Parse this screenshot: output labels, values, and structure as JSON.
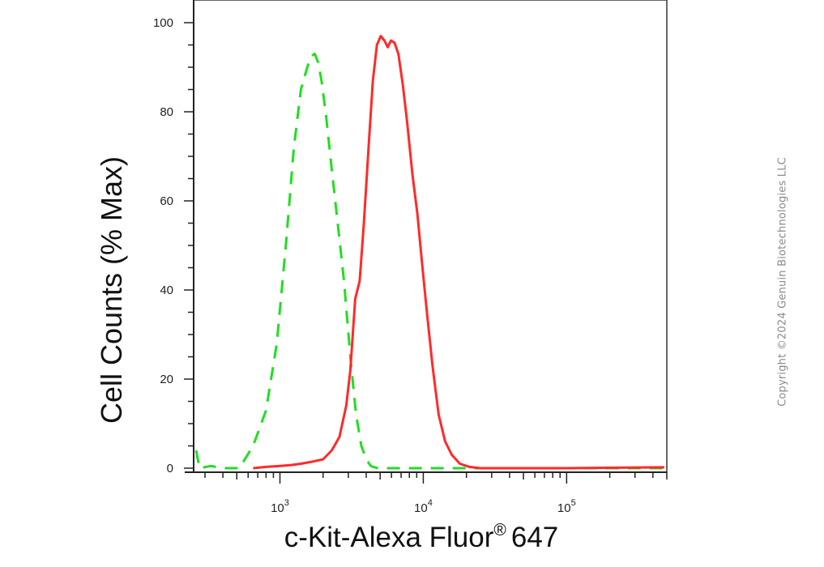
{
  "chart_data": {
    "type": "line",
    "xlabel": "c-Kit-Alexa Fluor",
    "xlabel_superscript": "®",
    "xlabel_suffix": "647",
    "ylabel": "Cell Counts (% Max)",
    "x_scale": "log",
    "xlim": [
      250,
      500000
    ],
    "ylim": [
      0,
      100
    ],
    "y_ticks": [
      0,
      20,
      40,
      60,
      80,
      100
    ],
    "x_ticks": [
      {
        "value": 1000,
        "base": "10",
        "exp": "3"
      },
      {
        "value": 10000,
        "base": "10",
        "exp": "4"
      },
      {
        "value": 100000,
        "base": "10",
        "exp": "5"
      }
    ],
    "series": [
      {
        "color": "#22dd22",
        "style": "dashed",
        "points": [
          [
            260,
            4
          ],
          [
            275,
            0
          ],
          [
            330,
            0.5
          ],
          [
            400,
            0
          ],
          [
            520,
            0
          ],
          [
            650,
            5
          ],
          [
            800,
            13
          ],
          [
            950,
            28
          ],
          [
            1100,
            50
          ],
          [
            1250,
            72
          ],
          [
            1400,
            85
          ],
          [
            1550,
            90
          ],
          [
            1650,
            92.5
          ],
          [
            1750,
            93
          ],
          [
            1850,
            91
          ],
          [
            1950,
            87
          ],
          [
            2100,
            79
          ],
          [
            2300,
            67
          ],
          [
            2550,
            54
          ],
          [
            2800,
            42
          ],
          [
            3100,
            25
          ],
          [
            3400,
            12
          ],
          [
            3700,
            5
          ],
          [
            4000,
            2
          ],
          [
            4300,
            0.5
          ],
          [
            4800,
            0
          ],
          [
            10000,
            0
          ],
          [
            20000,
            0
          ],
          [
            100000,
            0
          ],
          [
            480000,
            0
          ]
        ]
      },
      {
        "color": "#ff2a2a",
        "style": "solid",
        "points": [
          [
            650,
            0
          ],
          [
            800,
            0.3
          ],
          [
            1000,
            0.5
          ],
          [
            1200,
            0.7
          ],
          [
            1400,
            1
          ],
          [
            1700,
            1.5
          ],
          [
            2000,
            2
          ],
          [
            2300,
            4
          ],
          [
            2600,
            7
          ],
          [
            2900,
            14
          ],
          [
            3100,
            22
          ],
          [
            3350,
            38
          ],
          [
            3600,
            42
          ],
          [
            3850,
            55
          ],
          [
            4150,
            72
          ],
          [
            4450,
            87
          ],
          [
            4750,
            95
          ],
          [
            5050,
            97
          ],
          [
            5350,
            96
          ],
          [
            5650,
            94.5
          ],
          [
            5950,
            96
          ],
          [
            6300,
            95.5
          ],
          [
            6700,
            93
          ],
          [
            7200,
            86
          ],
          [
            7700,
            78
          ],
          [
            8400,
            66
          ],
          [
            9100,
            57
          ],
          [
            9800,
            46
          ],
          [
            10600,
            35
          ],
          [
            11600,
            23
          ],
          [
            12800,
            12
          ],
          [
            14200,
            6
          ],
          [
            15800,
            3
          ],
          [
            18000,
            1
          ],
          [
            21000,
            0.3
          ],
          [
            25000,
            0
          ],
          [
            40000,
            0
          ],
          [
            100000,
            0
          ],
          [
            480000,
            0.2
          ]
        ]
      }
    ]
  },
  "copyright": "Copyright ©2024 Genuin Biotechnologies LLC"
}
